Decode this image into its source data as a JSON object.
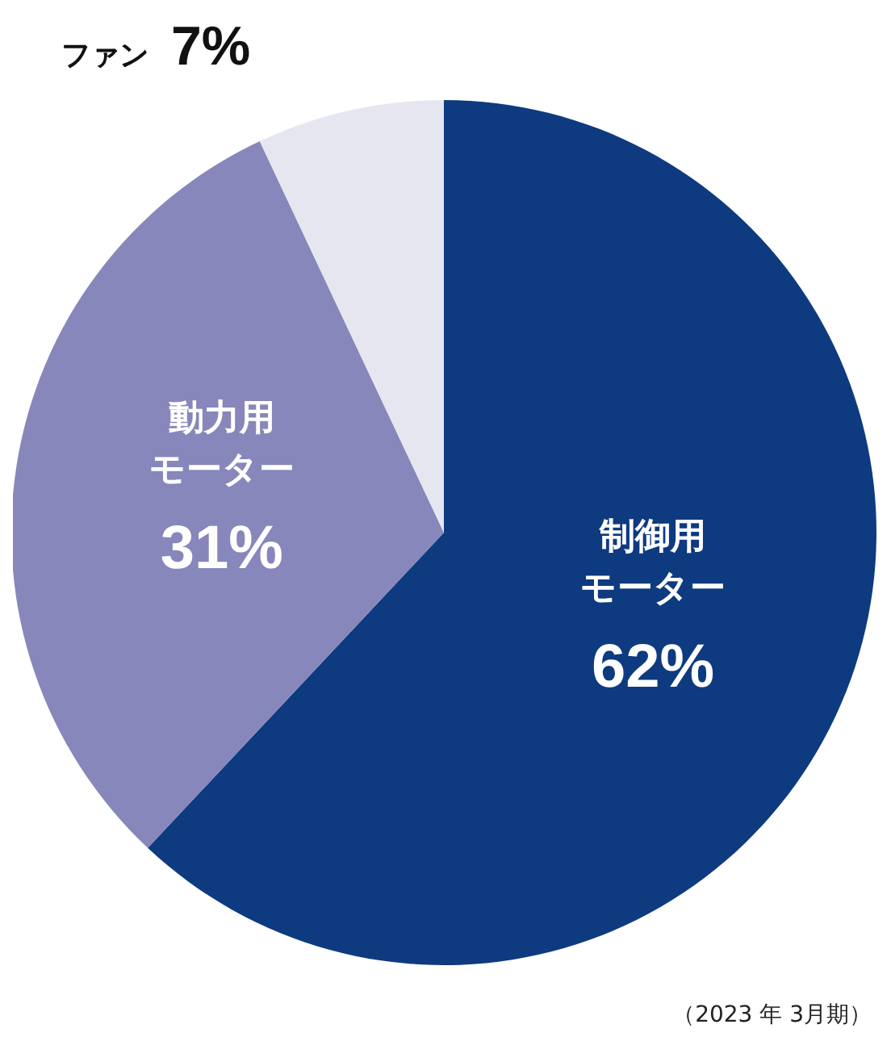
{
  "chart_data": {
    "type": "pie",
    "categories": [
      "制御用モーター",
      "動力用モーター",
      "ファン"
    ],
    "values": [
      62,
      31,
      7
    ],
    "value_labels": [
      "62%",
      "31%",
      "7%"
    ],
    "colors": [
      "#0e3a80",
      "#8787bb",
      "#e6e6f1"
    ],
    "annotations": [
      "（2023 年 3月期）"
    ]
  }
}
